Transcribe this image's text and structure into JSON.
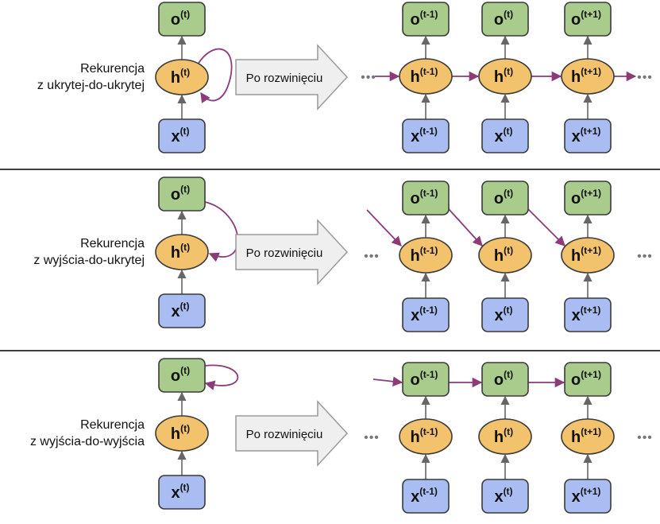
{
  "colors": {
    "output_fill": "#a9cb8c",
    "hidden_fill": "#f3c26d",
    "input_fill": "#a9bdf2",
    "node_stroke": "#3a3a3a",
    "recurrence_arrow": "#8a3b78",
    "feed_arrow": "#666666",
    "separator": "#222222",
    "big_arrow_fill": "#efefef",
    "big_arrow_stroke": "#9a9a9a"
  },
  "node_text": {
    "o": "o",
    "h": "h",
    "x": "x",
    "t": "(t)",
    "tm1": "(t-1)",
    "tp1": "(t+1)"
  },
  "ellipsis": "•••",
  "sections": [
    {
      "id": "hidden-to-hidden",
      "title_line1": "Rekurencja",
      "title_line2": "z ukrytej-do-ukrytej",
      "unfold_label": "Po rozwinięciu"
    },
    {
      "id": "output-to-hidden",
      "title_line1": "Rekurencja",
      "title_line2": "z wyjścia-do-ukrytej",
      "unfold_label": "Po rozwinięciu"
    },
    {
      "id": "output-to-output",
      "title_line1": "Rekurencja",
      "title_line2": "z wyjścia-do-wyjścia",
      "unfold_label": "Po rozwinięciu"
    }
  ]
}
